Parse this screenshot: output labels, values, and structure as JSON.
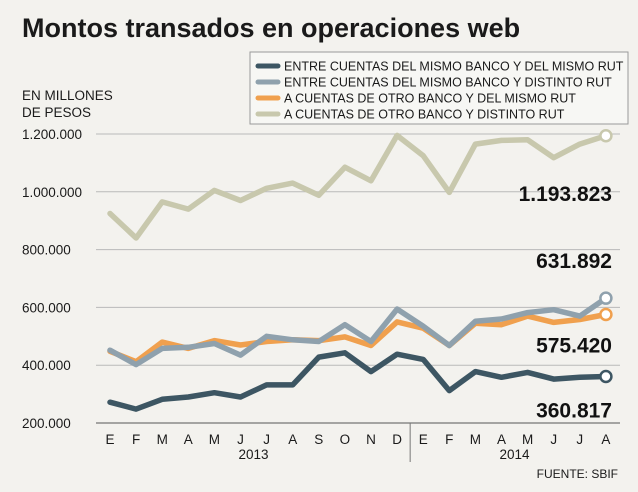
{
  "title": "Montos transados en operaciones web",
  "unit_label": [
    "EN MILLONES",
    "DE PESOS"
  ],
  "source": "FUENTE: SBIF",
  "chart_data": {
    "type": "line",
    "title": "Montos transados en operaciones web",
    "ylabel": "EN MILLONES DE PESOS",
    "xlabel": "",
    "ylim": [
      200000,
      1200000
    ],
    "yticks": [
      "200.000",
      "400.000",
      "600.000",
      "800.000",
      "1.000.000",
      "1.200.000"
    ],
    "ytick_values": [
      200000,
      400000,
      600000,
      800000,
      1000000,
      1200000
    ],
    "x": [
      "E",
      "F",
      "M",
      "A",
      "M",
      "J",
      "J",
      "A",
      "S",
      "O",
      "N",
      "D",
      "E",
      "F",
      "M",
      "A",
      "M",
      "J",
      "J",
      "A"
    ],
    "year_labels": [
      {
        "label": "2013",
        "start": 0,
        "end": 11
      },
      {
        "label": "2014",
        "start": 12,
        "end": 19
      }
    ],
    "grid": "horizontal",
    "legend_position": "top-right",
    "series": [
      {
        "name": "ENTRE CUENTAS DEL MISMO BANCO Y DEL MISMO RUT",
        "color": "#3d5663",
        "values": [
          272000,
          248000,
          282000,
          290000,
          305000,
          290000,
          332000,
          332000,
          428000,
          443000,
          378000,
          438000,
          420000,
          312000,
          378000,
          358000,
          375000,
          352000,
          358000,
          360817
        ],
        "end_label": "360.817"
      },
      {
        "name": "ENTRE CUENTAS DEL MISMO BANCO Y DISTINTO RUT",
        "color": "#8fa1ad",
        "values": [
          452000,
          402000,
          458000,
          462000,
          475000,
          435000,
          500000,
          488000,
          482000,
          540000,
          482000,
          594000,
          535000,
          468000,
          552000,
          560000,
          582000,
          592000,
          570000,
          631892
        ],
        "end_label": "631.892"
      },
      {
        "name": "A CUENTAS DE OTRO BANCO Y DEL MISMO RUT",
        "color": "#f0a04e",
        "values": [
          448000,
          412000,
          480000,
          458000,
          485000,
          470000,
          482000,
          488000,
          485000,
          498000,
          468000,
          550000,
          528000,
          468000,
          545000,
          540000,
          570000,
          548000,
          558000,
          575420
        ],
        "end_label": "575.420"
      },
      {
        "name": "A CUENTAS DE OTRO BANCO Y DISTINTO RUT",
        "color": "#c8c8ad",
        "values": [
          925000,
          840000,
          965000,
          940000,
          1005000,
          970000,
          1012000,
          1030000,
          988000,
          1085000,
          1038000,
          1195000,
          1125000,
          998000,
          1165000,
          1178000,
          1180000,
          1118000,
          1165000,
          1193823
        ],
        "end_label": "1.193.823"
      }
    ]
  }
}
